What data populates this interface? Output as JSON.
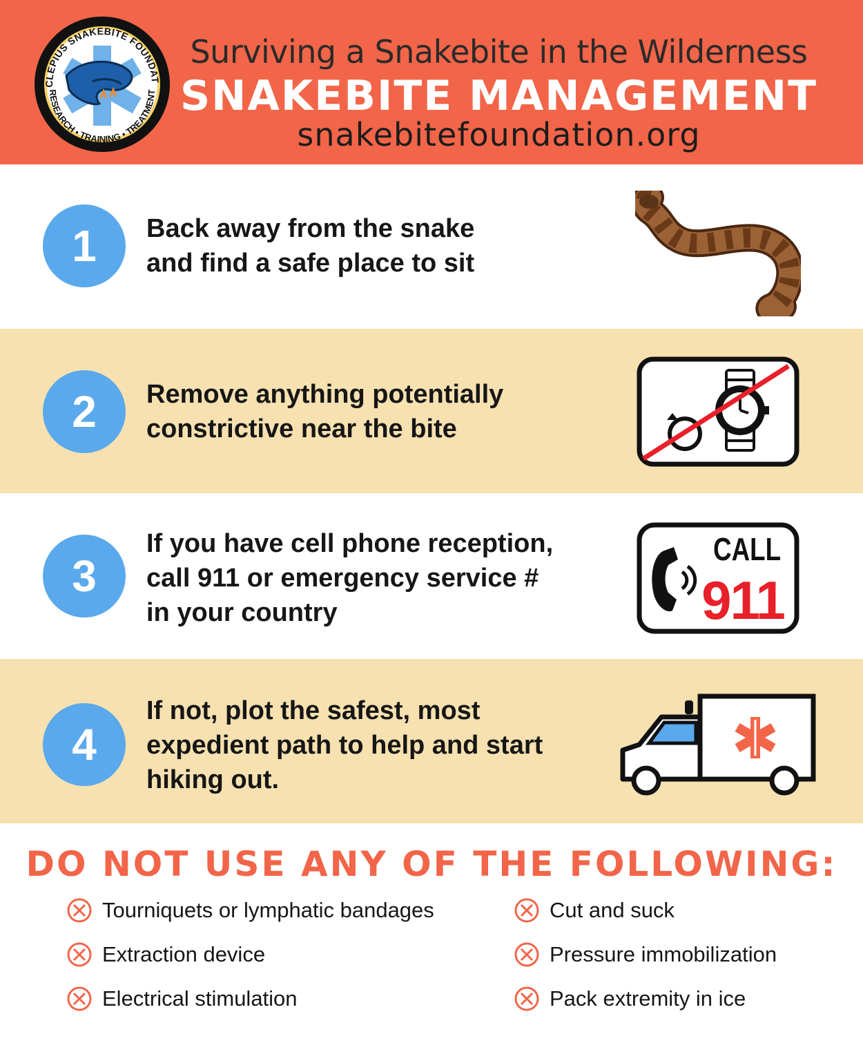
{
  "header": {
    "logo_ring_text_top": "ASCLEPIUS SNAKEBITE FOUNDATION",
    "logo_ring_text_bottom": "RESEARCH • TRAINING • TREATMENT",
    "subtitle": "Surviving a Snakebite in the Wilderness",
    "title": "SNAKEBITE MANAGEMENT",
    "url": "snakebitefoundation.org"
  },
  "steps": [
    {
      "number": "1",
      "text_lines": [
        "Back away from the snake",
        "and find a safe place to sit"
      ],
      "icon": "snake-icon"
    },
    {
      "number": "2",
      "text_lines": [
        "Remove anything potentially",
        "constrictive near the bite"
      ],
      "icon": "no-ring-watch-icon"
    },
    {
      "number": "3",
      "text_lines": [
        "If you have cell phone reception,",
        "call 911 or emergency service #",
        "in your country"
      ],
      "icon": "call-911-icon",
      "icon_text_top": "CALL",
      "icon_text_number": "911"
    },
    {
      "number": "4",
      "text_lines": [
        "If not, plot the safest, most",
        "expedient path to help and start",
        "hiking out."
      ],
      "icon": "ambulance-icon"
    }
  ],
  "warnings": {
    "title": "DO NOT USE ANY OF THE FOLLOWING:",
    "left": [
      "Tourniquets or lymphatic bandages",
      "Extraction device",
      "Electrical stimulation"
    ],
    "right": [
      "Cut and suck",
      "Pressure immobilization",
      "Pack extremity in ice"
    ]
  },
  "colors": {
    "header": "#f26549",
    "band": "#f7e1b0",
    "circle": "#5aa9ec",
    "red": "#e8202a"
  }
}
